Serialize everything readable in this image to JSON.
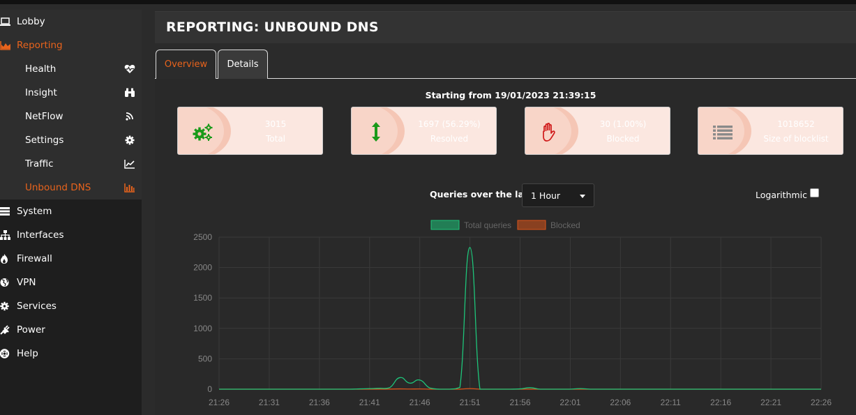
{
  "sidebar": {
    "items": [
      {
        "label": "Lobby",
        "icon": "laptop-icon"
      },
      {
        "label": "Reporting",
        "icon": "area-chart-icon"
      },
      {
        "label": "System",
        "icon": "server-icon"
      },
      {
        "label": "Interfaces",
        "icon": "sitemap-icon"
      },
      {
        "label": "Firewall",
        "icon": "fire-icon"
      },
      {
        "label": "VPN",
        "icon": "globe-icon"
      },
      {
        "label": "Services",
        "icon": "gears-icon"
      },
      {
        "label": "Power",
        "icon": "plug-icon"
      },
      {
        "label": "Help",
        "icon": "lifebuoy-icon"
      }
    ],
    "reporting_sub": [
      {
        "label": "Health",
        "icon": "heartbeat-icon"
      },
      {
        "label": "Insight",
        "icon": "binoculars-icon"
      },
      {
        "label": "NetFlow",
        "icon": "rss-icon"
      },
      {
        "label": "Settings",
        "icon": "gear-icon"
      },
      {
        "label": "Traffic",
        "icon": "line-chart-icon"
      },
      {
        "label": "Unbound DNS",
        "icon": "bar-chart-icon"
      }
    ]
  },
  "header": {
    "title": "REPORTING: UNBOUND DNS"
  },
  "tabs": [
    {
      "label": "Overview",
      "active": true
    },
    {
      "label": "Details",
      "active": false
    }
  ],
  "main": {
    "starting": "Starting from 19/01/2023 21:39:15",
    "cards": [
      {
        "value": "3015",
        "caption": "Total",
        "icon": "gears-icon"
      },
      {
        "value": "1697 (56.29%)",
        "caption": "Resolved",
        "icon": "arrows-vertical-icon"
      },
      {
        "value": "30 (1.00%)",
        "caption": "Blocked",
        "icon": "hand-stop-icon"
      },
      {
        "value": "1018652",
        "caption": "Size of blocklist",
        "icon": "list-icon"
      }
    ],
    "queries_label": "Queries over the last",
    "range_selected": "1 Hour",
    "logarithmic_label": "Logarithmic",
    "logarithmic_checked": false
  },
  "colors": {
    "accent": "#e8631c",
    "total": "#1ec57a",
    "blocked": "#d9541a",
    "card_bg": "#fbe7e0"
  },
  "chart_data": {
    "type": "line",
    "x": [
      "21:26",
      "21:27",
      "21:28",
      "21:29",
      "21:30",
      "21:31",
      "21:32",
      "21:33",
      "21:34",
      "21:35",
      "21:36",
      "21:37",
      "21:38",
      "21:39",
      "21:40",
      "21:41",
      "21:42",
      "21:43",
      "21:44",
      "21:45",
      "21:46",
      "21:47",
      "21:48",
      "21:49",
      "21:50",
      "21:51",
      "21:52",
      "21:53",
      "21:54",
      "21:55",
      "21:56",
      "21:57",
      "21:58",
      "21:59",
      "22:00",
      "22:01",
      "22:02",
      "22:03",
      "22:04",
      "22:05",
      "22:06",
      "22:07",
      "22:08",
      "22:09",
      "22:10",
      "22:11",
      "22:12",
      "22:13",
      "22:14",
      "22:15",
      "22:16",
      "22:17",
      "22:18",
      "22:19",
      "22:20",
      "22:21",
      "22:22",
      "22:23",
      "22:24",
      "22:25",
      "22:26"
    ],
    "x_ticks": [
      "21:26",
      "21:31",
      "21:36",
      "21:41",
      "21:46",
      "21:51",
      "21:56",
      "22:01",
      "22:06",
      "22:11",
      "22:16",
      "22:21",
      "22:26"
    ],
    "series": [
      {
        "name": "Total queries",
        "values": [
          0,
          0,
          0,
          0,
          0,
          0,
          0,
          0,
          0,
          0,
          0,
          0,
          0,
          0,
          5,
          10,
          15,
          25,
          190,
          100,
          150,
          20,
          0,
          0,
          30,
          2330,
          0,
          0,
          0,
          0,
          5,
          25,
          0,
          0,
          0,
          0,
          10,
          0,
          0,
          0,
          0,
          0,
          0,
          0,
          0,
          0,
          0,
          0,
          0,
          0,
          0,
          0,
          0,
          0,
          0,
          0,
          0,
          0,
          0,
          0,
          0
        ]
      },
      {
        "name": "Blocked",
        "values": [
          0,
          0,
          0,
          0,
          0,
          0,
          0,
          0,
          0,
          0,
          0,
          0,
          0,
          0,
          0,
          0,
          0,
          2,
          5,
          3,
          4,
          1,
          0,
          0,
          1,
          10,
          0,
          0,
          0,
          0,
          0,
          1,
          0,
          0,
          0,
          0,
          0,
          0,
          0,
          0,
          0,
          0,
          0,
          0,
          0,
          0,
          0,
          0,
          0,
          0,
          0,
          0,
          0,
          0,
          0,
          0,
          0,
          0,
          0,
          0,
          0
        ]
      }
    ],
    "ylim": [
      0,
      2500
    ],
    "y_ticks": [
      0,
      500,
      1000,
      1500,
      2000,
      2500
    ],
    "grid": true,
    "legend": "top"
  }
}
